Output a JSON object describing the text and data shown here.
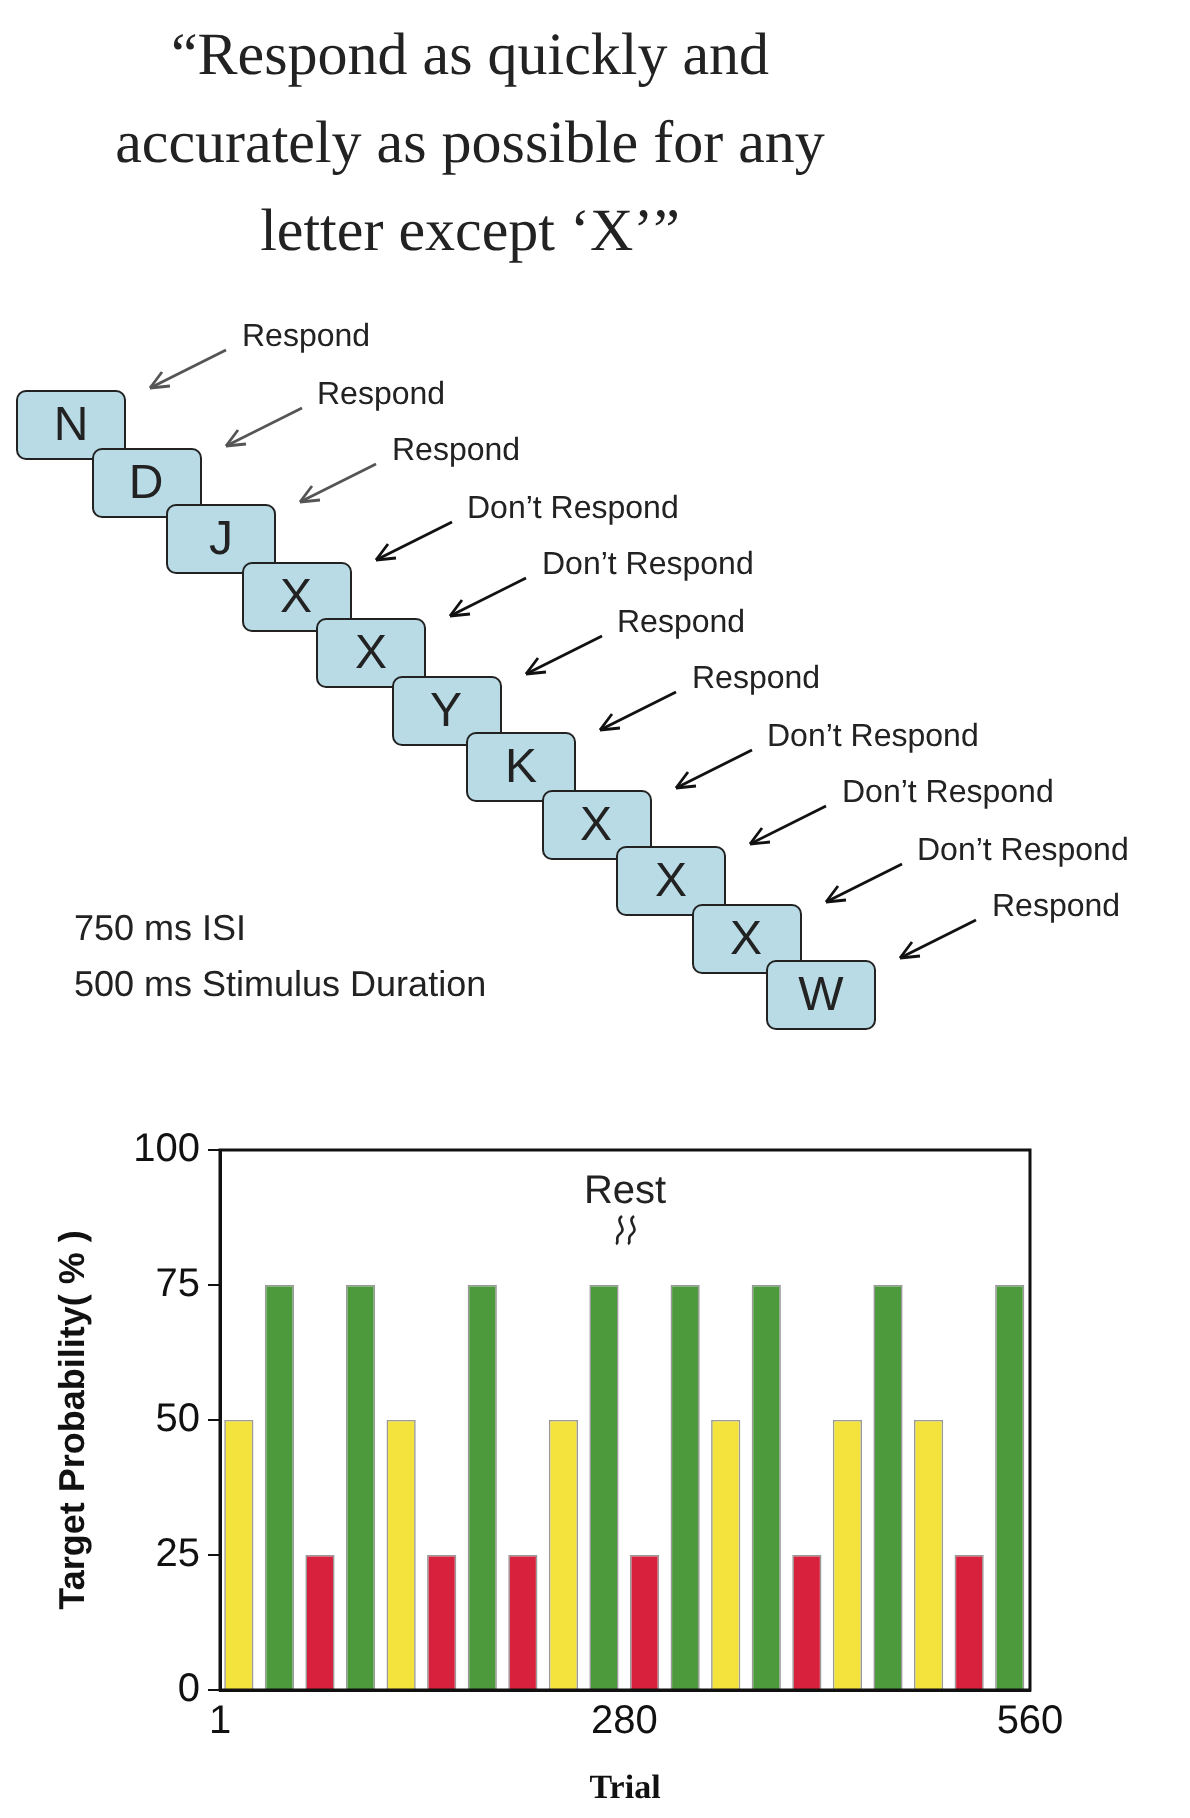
{
  "chart_data": {
    "type": "bar",
    "title": "“Respond as quickly and accurately as possible for any letter except ‘X’”",
    "annotations": [
      "Respond",
      "N",
      "Respond",
      "D",
      "Respond",
      "J",
      "Don’t Respond",
      "X",
      "Don’t Respond",
      "X",
      "Respond",
      "Y",
      "Respond",
      "K",
      "Don’t Respond",
      "X",
      "Don’t Respond",
      "X",
      "Don’t Respond",
      "X",
      "Respond",
      "W",
      "750 ms ISI",
      "500 ms Stimulus Duration",
      "Rest"
    ],
    "xlabel": "Trial",
    "ylabel": "Target Probability( % )",
    "x": [
      14,
      42,
      70,
      98,
      126,
      154,
      182,
      210,
      238,
      266,
      294,
      322,
      350,
      378,
      406,
      434,
      462,
      490,
      518,
      546
    ],
    "values": [
      50,
      75,
      25,
      75,
      50,
      25,
      75,
      25,
      50,
      75,
      25,
      75,
      50,
      75,
      25,
      50,
      75,
      50,
      25,
      75
    ],
    "colors": [
      "#f3e33c",
      "#4c9a3c",
      "#d8213c",
      "#4c9a3c",
      "#f3e33c",
      "#d8213c",
      "#4c9a3c",
      "#d8213c",
      "#f3e33c",
      "#4c9a3c",
      "#d8213c",
      "#4c9a3c",
      "#f3e33c",
      "#4c9a3c",
      "#d8213c",
      "#f3e33c",
      "#4c9a3c",
      "#f3e33c",
      "#d8213c",
      "#4c9a3c"
    ],
    "xlim": [
      1,
      560
    ],
    "xticks": [
      1,
      280,
      560
    ],
    "ylim": [
      0,
      100
    ],
    "yticks": [
      0,
      25,
      50,
      75,
      100
    ],
    "grid": false,
    "legend": false
  }
}
